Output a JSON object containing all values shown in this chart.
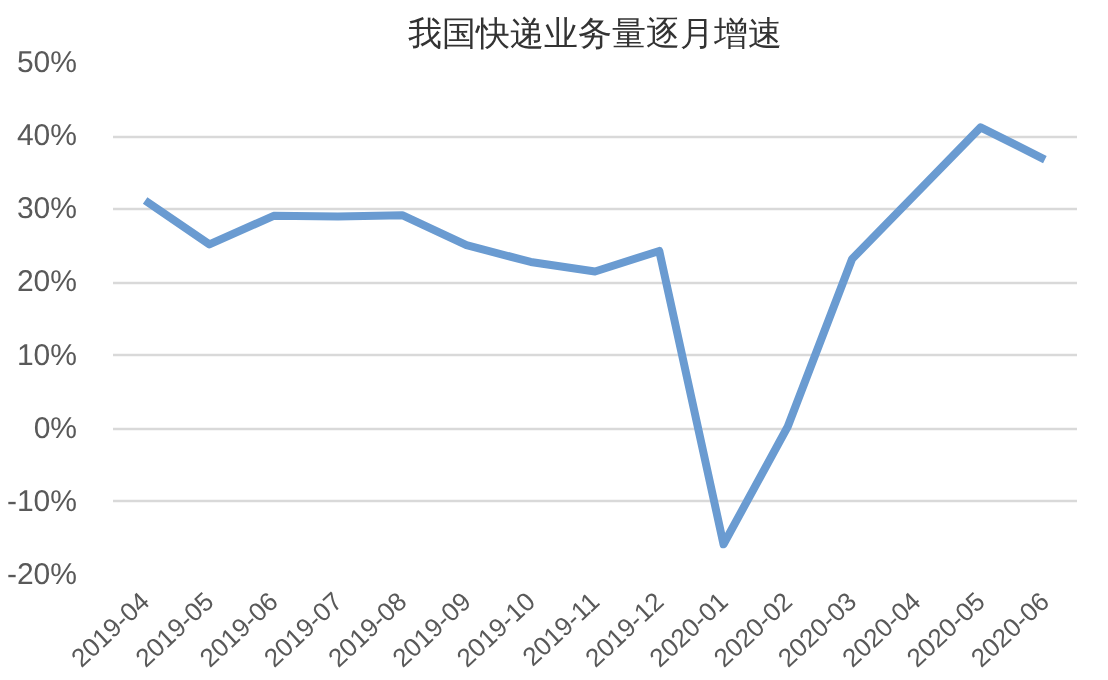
{
  "chart_data": {
    "type": "line",
    "title": "我国快递业务量逐月增速",
    "categories": [
      "2019-04",
      "2019-05",
      "2019-06",
      "2019-07",
      "2019-08",
      "2019-09",
      "2019-10",
      "2019-11",
      "2019-12",
      "2020-01",
      "2020-02",
      "2020-03",
      "2020-04",
      "2020-05",
      "2020-06"
    ],
    "values": [
      31.2,
      25.2,
      29.1,
      29,
      29.2,
      25.1,
      22.8,
      21.5,
      24.3,
      -15.8,
      0.3,
      23.2,
      32.2,
      41.2,
      36.8
    ],
    "color": "#6a9bd1",
    "ylim": [
      -20,
      50
    ],
    "yticks": [
      {
        "value": -20,
        "label": "-20%"
      },
      {
        "value": -10,
        "label": "-10%"
      },
      {
        "value": 0,
        "label": "0%"
      },
      {
        "value": 10,
        "label": "10%"
      },
      {
        "value": 20,
        "label": "20%"
      },
      {
        "value": 30,
        "label": "30%"
      },
      {
        "value": 40,
        "label": "40%"
      },
      {
        "value": 50,
        "label": "50%"
      }
    ],
    "grid": "y",
    "legend": false,
    "marker": "none",
    "line_style": "solid"
  }
}
